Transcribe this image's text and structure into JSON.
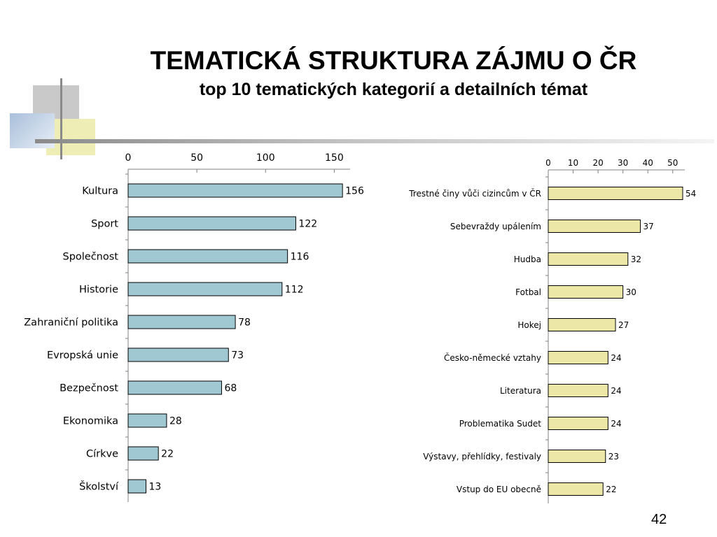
{
  "slide": {
    "title": "TEMATICKÁ STRUKTURA ZÁJMU O ČR",
    "subtitle": "top 10 tematických kategorií a detailních témat",
    "page_number": "42"
  },
  "colors": {
    "left_bar_fill": "#9fc8d3",
    "right_bar_fill": "#ece7a6",
    "bar_stroke": "#000000",
    "deco_gray": "#c9c9c9",
    "deco_yellow": "#efedb6",
    "deco_blue": "#a9bfdb"
  },
  "chart_data": [
    {
      "type": "bar",
      "orientation": "horizontal",
      "categories": [
        "Kultura",
        "Sport",
        "Společnost",
        "Historie",
        "Zahraniční politika",
        "Evropská unie",
        "Bezpečnost",
        "Ekonomika",
        "Církve",
        "Školství"
      ],
      "values": [
        156,
        122,
        116,
        112,
        78,
        73,
        68,
        28,
        22,
        13
      ],
      "xticks": [
        0,
        50,
        100,
        150
      ],
      "xlim": [
        0,
        160
      ],
      "axis_position": "top",
      "data_labels": true,
      "grid": false,
      "legend": "none"
    },
    {
      "type": "bar",
      "orientation": "horizontal",
      "categories": [
        "Trestné činy vůči cizincům v ČR",
        "Sebevraždy upálením",
        "Hudba",
        "Fotbal",
        "Hokej",
        "Česko-německé vztahy",
        "Literatura",
        "Problematika Sudet",
        "Výstavy, přehlídky, festivaly",
        "Vstup do EU obecně"
      ],
      "values": [
        54,
        37,
        32,
        30,
        27,
        24,
        24,
        24,
        23,
        22
      ],
      "xticks": [
        0,
        10,
        20,
        30,
        40,
        50
      ],
      "xlim": [
        0,
        54
      ],
      "axis_position": "top",
      "data_labels": true,
      "grid": false,
      "legend": "none"
    }
  ]
}
